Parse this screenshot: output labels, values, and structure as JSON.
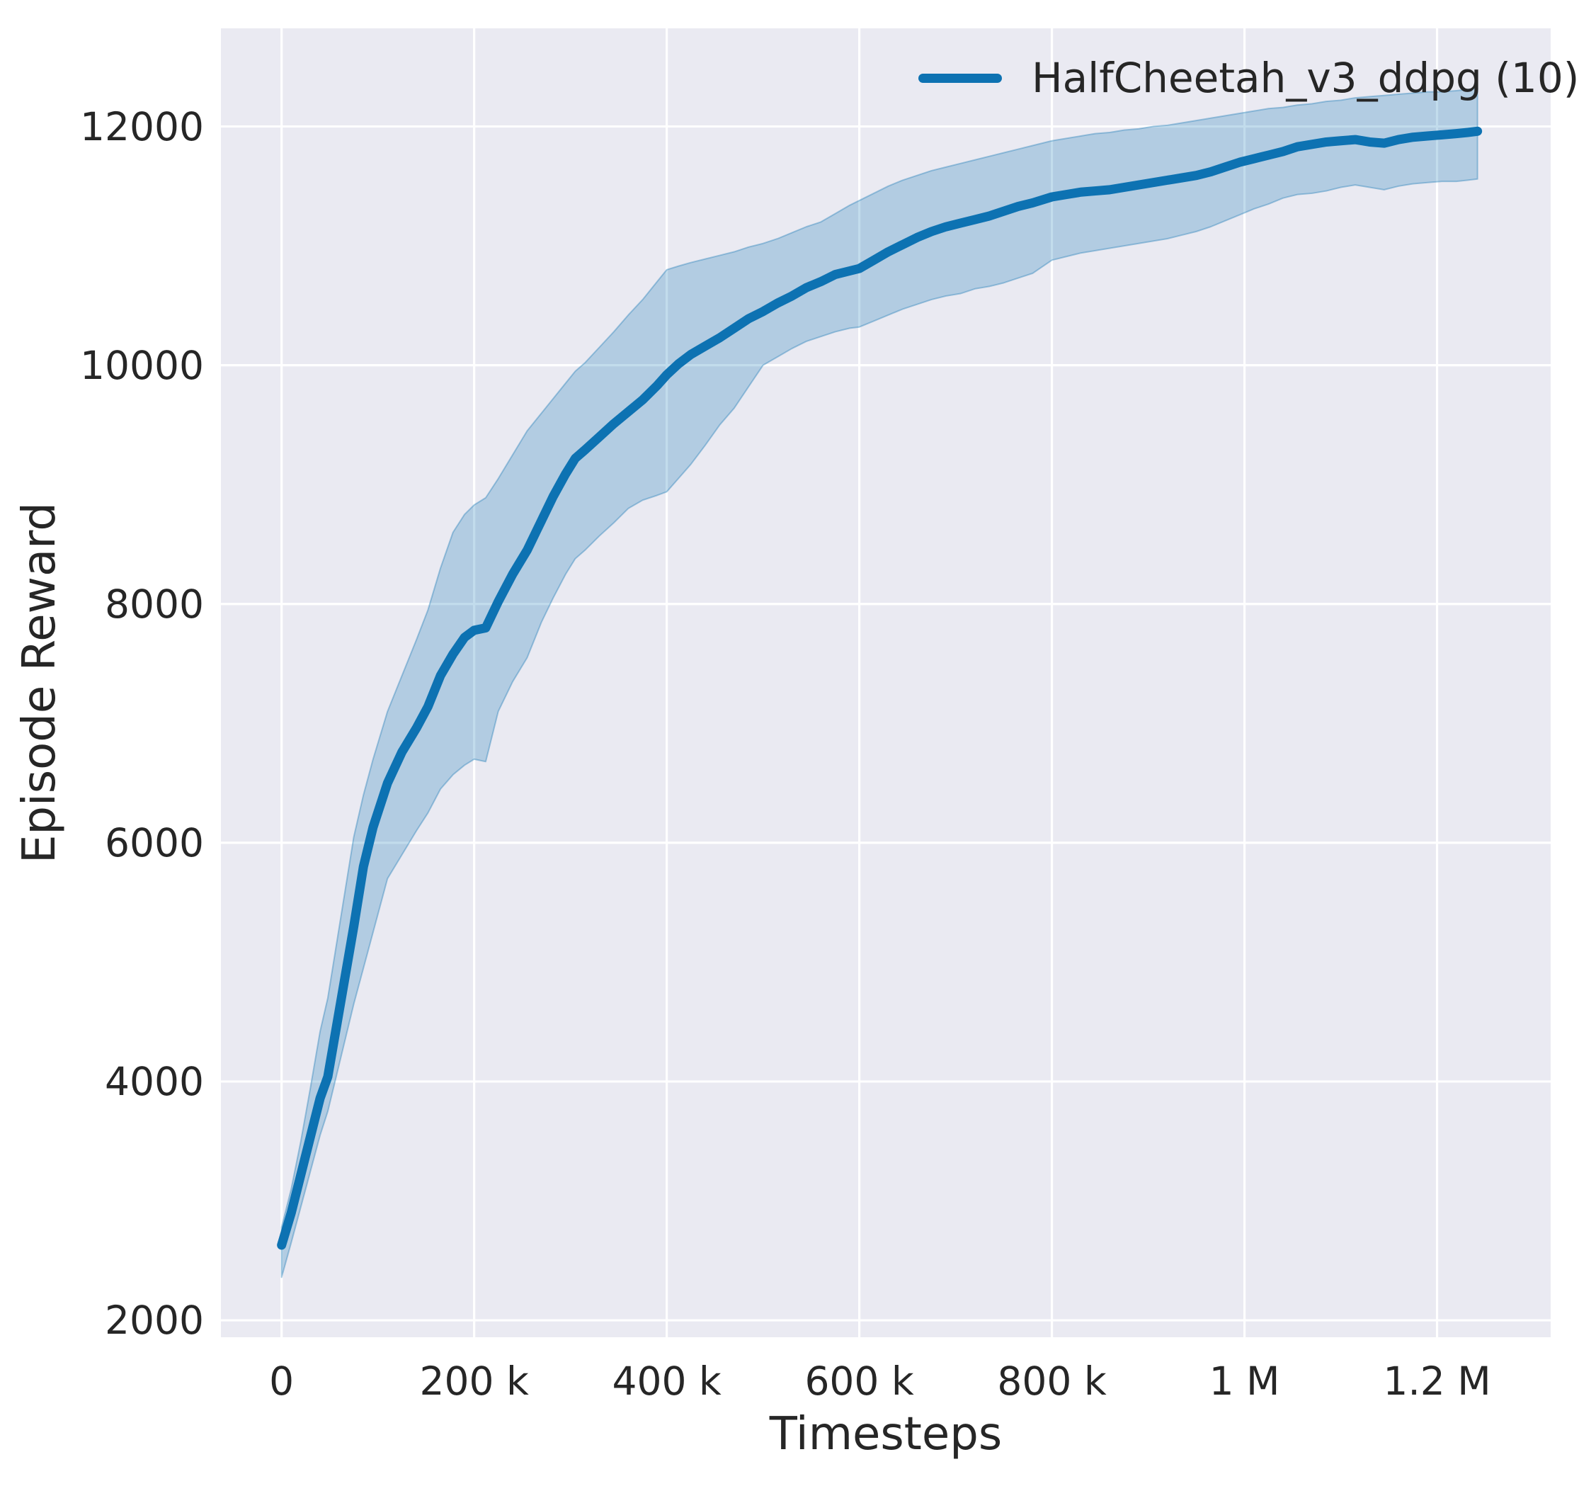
{
  "chart_data": {
    "type": "line",
    "title": "",
    "xlabel": "Timesteps",
    "ylabel": "Episode Reward",
    "grid": true,
    "legend": {
      "location": "upper right",
      "labels": [
        "HalfCheetah_v3_ddpg (10)"
      ]
    },
    "colors": {
      "plot_background": "#eaeaf2",
      "grid_line": "#ffffff",
      "text": "#262626",
      "line": "#0d72b2",
      "band_fill": "rgba(13,114,178,0.25)",
      "band_edge": "rgba(13,114,178,0.35)"
    },
    "xlim": [
      -63000,
      1318000
    ],
    "ylim": [
      1858,
      12822
    ],
    "x_ticks": [
      {
        "value": 0,
        "label": "0"
      },
      {
        "value": 200000,
        "label": "200 k"
      },
      {
        "value": 400000,
        "label": "400 k"
      },
      {
        "value": 600000,
        "label": "600 k"
      },
      {
        "value": 800000,
        "label": "800 k"
      },
      {
        "value": 1000000,
        "label": "1 M"
      },
      {
        "value": 1200000,
        "label": "1.2 M"
      }
    ],
    "y_ticks": [
      {
        "value": 2000,
        "label": "2000"
      },
      {
        "value": 4000,
        "label": "4000"
      },
      {
        "value": 6000,
        "label": "6000"
      },
      {
        "value": 8000,
        "label": "8000"
      },
      {
        "value": 10000,
        "label": "10000"
      },
      {
        "value": 12000,
        "label": "12000"
      }
    ],
    "series": [
      {
        "name": "HalfCheetah_v3_ddpg (10)",
        "x": [
          0,
          10000,
          20000,
          30000,
          40000,
          48000,
          60000,
          75000,
          85000,
          95000,
          110000,
          125000,
          140000,
          152000,
          165000,
          178000,
          190000,
          200000,
          212000,
          225000,
          240000,
          255000,
          270000,
          282000,
          295000,
          305000,
          315000,
          330000,
          345000,
          360000,
          375000,
          390000,
          400000,
          412000,
          425000,
          440000,
          455000,
          470000,
          485000,
          500000,
          515000,
          530000,
          545000,
          560000,
          575000,
          590000,
          600000,
          615000,
          630000,
          645000,
          660000,
          675000,
          690000,
          705000,
          720000,
          735000,
          750000,
          765000,
          780000,
          800000,
          815000,
          830000,
          845000,
          860000,
          875000,
          890000,
          905000,
          920000,
          935000,
          950000,
          965000,
          980000,
          995000,
          1010000,
          1025000,
          1040000,
          1055000,
          1070000,
          1085000,
          1100000,
          1115000,
          1130000,
          1145000,
          1160000,
          1175000,
          1190000,
          1205000,
          1220000,
          1232000,
          1242000
        ],
        "y": [
          2630,
          2900,
          3220,
          3540,
          3860,
          4040,
          4600,
          5300,
          5800,
          6130,
          6500,
          6760,
          6960,
          7140,
          7400,
          7580,
          7720,
          7780,
          7800,
          8020,
          8250,
          8450,
          8700,
          8900,
          9090,
          9220,
          9290,
          9400,
          9510,
          9610,
          9710,
          9830,
          9920,
          10010,
          10090,
          10160,
          10230,
          10310,
          10390,
          10450,
          10520,
          10580,
          10650,
          10700,
          10760,
          10790,
          10810,
          10880,
          10950,
          11010,
          11070,
          11120,
          11160,
          11190,
          11220,
          11250,
          11290,
          11330,
          11360,
          11410,
          11430,
          11450,
          11460,
          11470,
          11490,
          11510,
          11530,
          11550,
          11570,
          11590,
          11620,
          11660,
          11700,
          11730,
          11760,
          11790,
          11830,
          11850,
          11870,
          11880,
          11890,
          11870,
          11860,
          11890,
          11910,
          11920,
          11930,
          11940,
          11950,
          11960
        ],
        "band_lo": [
          2360,
          2650,
          2950,
          3250,
          3550,
          3750,
          4150,
          4650,
          4950,
          5250,
          5700,
          5900,
          6100,
          6250,
          6450,
          6570,
          6650,
          6700,
          6680,
          7100,
          7350,
          7550,
          7850,
          8050,
          8250,
          8380,
          8450,
          8570,
          8680,
          8800,
          8870,
          8910,
          8940,
          9050,
          9170,
          9330,
          9500,
          9640,
          9820,
          10000,
          10070,
          10140,
          10200,
          10240,
          10280,
          10310,
          10320,
          10370,
          10420,
          10470,
          10510,
          10550,
          10580,
          10600,
          10640,
          10660,
          10690,
          10730,
          10770,
          10880,
          10910,
          10940,
          10960,
          10980,
          11000,
          11020,
          11040,
          11060,
          11090,
          11120,
          11160,
          11210,
          11260,
          11310,
          11350,
          11400,
          11430,
          11440,
          11460,
          11490,
          11510,
          11490,
          11470,
          11500,
          11520,
          11530,
          11540,
          11540,
          11550,
          11560
        ],
        "band_hi": [
          2780,
          3100,
          3500,
          3950,
          4420,
          4700,
          5300,
          6050,
          6400,
          6700,
          7100,
          7400,
          7700,
          7950,
          8300,
          8600,
          8750,
          8830,
          8890,
          9050,
          9250,
          9450,
          9600,
          9720,
          9850,
          9950,
          10020,
          10150,
          10280,
          10420,
          10550,
          10700,
          10800,
          10830,
          10860,
          10890,
          10920,
          10950,
          10990,
          11020,
          11060,
          11110,
          11160,
          11200,
          11270,
          11340,
          11380,
          11440,
          11500,
          11550,
          11590,
          11630,
          11660,
          11690,
          11720,
          11750,
          11780,
          11810,
          11840,
          11880,
          11900,
          11920,
          11940,
          11950,
          11970,
          11980,
          12000,
          12010,
          12030,
          12050,
          12070,
          12090,
          12110,
          12130,
          12150,
          12160,
          12180,
          12190,
          12210,
          12220,
          12240,
          12250,
          12260,
          12270,
          12280,
          12290,
          12290,
          12300,
          12310,
          12320
        ]
      }
    ]
  }
}
